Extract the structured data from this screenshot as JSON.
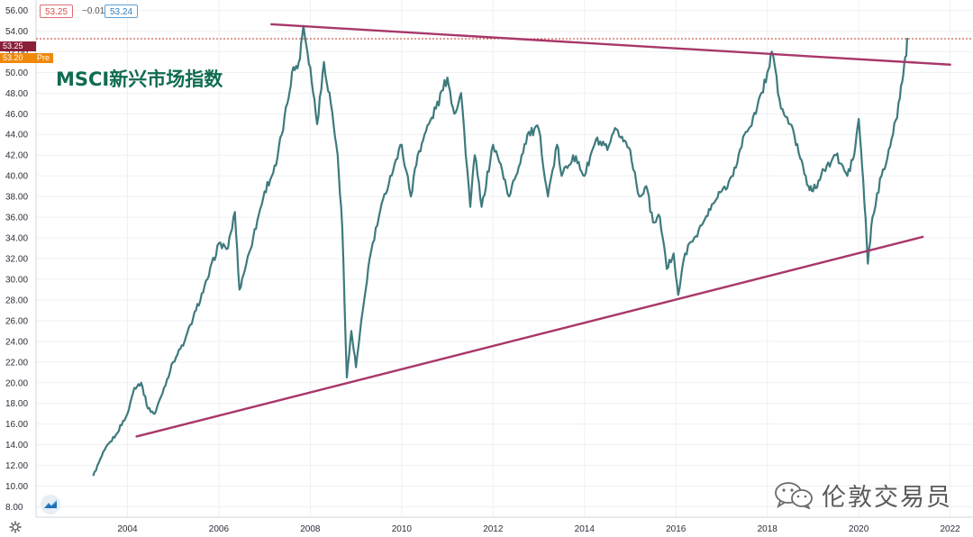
{
  "quote": {
    "bid": "53.25",
    "change": "−0.01",
    "ask": "53.24",
    "last_price": "53.25",
    "pre_price": "53.20",
    "pre_label": "Pre"
  },
  "watermark": "伦敦交易员",
  "colors": {
    "price_line": "#3e7a7e",
    "trendline": "#a8376a",
    "last_price_marker": "#8a1f3a",
    "pre_marker": "#f0880a",
    "title": "#0f6b52"
  },
  "icons": [
    "settings-icon",
    "tradingview-logo-icon",
    "wechat-icon"
  ],
  "chart_data": {
    "type": "line",
    "title": "MSCI新兴市场指数",
    "xlabel": "",
    "ylabel": "",
    "xlim": [
      2002.0,
      2022.5
    ],
    "ylim": [
      7.0,
      57.0
    ],
    "y_ticks": [
      8,
      10,
      12,
      14,
      16,
      18,
      20,
      22,
      24,
      26,
      28,
      30,
      32,
      34,
      36,
      38,
      40,
      42,
      44,
      46,
      48,
      50,
      52,
      54,
      56
    ],
    "y_tick_labels": [
      "8.00",
      "10.00",
      "12.00",
      "14.00",
      "16.00",
      "18.00",
      "20.00",
      "22.00",
      "24.00",
      "26.00",
      "28.00",
      "30.00",
      "32.00",
      "34.00",
      "36.00",
      "38.00",
      "40.00",
      "42.00",
      "44.00",
      "46.00",
      "48.00",
      "50.00",
      "52.00",
      "54.00",
      "56.00"
    ],
    "x_ticks": [
      2004,
      2006,
      2008,
      2010,
      2012,
      2014,
      2016,
      2018,
      2020,
      2022
    ],
    "x_tick_labels": [
      "2004",
      "2006",
      "2008",
      "2010",
      "2012",
      "2014",
      "2016",
      "2018",
      "2020",
      "2022"
    ],
    "grid": true,
    "series": [
      {
        "x": [
          2003.25,
          2003.5,
          2003.75,
          2004.0,
          2004.15,
          2004.3,
          2004.45,
          2004.6,
          2004.8,
          2005.0,
          2005.25,
          2005.5,
          2005.75,
          2006.0,
          2006.2,
          2006.35,
          2006.45,
          2006.6,
          2006.75,
          2007.0,
          2007.25,
          2007.5,
          2007.6,
          2007.75,
          2007.85,
          2008.0,
          2008.15,
          2008.3,
          2008.45,
          2008.6,
          2008.7,
          2008.8,
          2008.9,
          2009.0,
          2009.15,
          2009.3,
          2009.5,
          2009.75,
          2010.0,
          2010.2,
          2010.35,
          2010.5,
          2010.75,
          2011.0,
          2011.15,
          2011.3,
          2011.5,
          2011.6,
          2011.75,
          2012.0,
          2012.2,
          2012.35,
          2012.5,
          2012.75,
          2013.0,
          2013.2,
          2013.4,
          2013.5,
          2013.75,
          2014.0,
          2014.25,
          2014.5,
          2014.7,
          2015.0,
          2015.2,
          2015.35,
          2015.5,
          2015.65,
          2015.8,
          2015.95,
          2016.05,
          2016.2,
          2016.4,
          2016.6,
          2016.85,
          2017.0,
          2017.25,
          2017.5,
          2017.75,
          2018.0,
          2018.1,
          2018.3,
          2018.5,
          2018.75,
          2018.9,
          2019.0,
          2019.3,
          2019.5,
          2019.75,
          2019.9,
          2020.0,
          2020.1,
          2020.2,
          2020.3,
          2020.5,
          2020.75,
          2020.9,
          2021.0,
          2021.08
        ],
        "y": [
          11.0,
          13.5,
          15.0,
          17.0,
          19.5,
          20.0,
          17.5,
          17.0,
          19.5,
          22.0,
          24.0,
          27.0,
          30.0,
          33.5,
          33.0,
          36.5,
          29.0,
          31.5,
          34.0,
          38.5,
          41.0,
          47.0,
          50.0,
          51.0,
          54.5,
          50.5,
          45.0,
          51.0,
          47.0,
          42.0,
          35.0,
          20.5,
          25.0,
          21.5,
          27.0,
          32.0,
          36.0,
          40.0,
          43.0,
          38.0,
          42.0,
          44.0,
          46.5,
          49.5,
          46.0,
          48.0,
          37.0,
          42.0,
          37.0,
          43.0,
          40.5,
          38.0,
          40.0,
          44.0,
          44.5,
          38.0,
          43.0,
          40.0,
          42.0,
          40.0,
          43.5,
          42.5,
          44.5,
          42.5,
          38.0,
          39.0,
          35.5,
          36.0,
          31.0,
          32.5,
          28.5,
          32.5,
          34.0,
          35.5,
          37.5,
          38.5,
          40.0,
          44.0,
          46.0,
          50.0,
          52.0,
          46.5,
          45.0,
          41.5,
          39.0,
          38.5,
          41.0,
          42.0,
          40.0,
          42.0,
          45.5,
          39.5,
          31.5,
          36.0,
          40.0,
          44.0,
          47.5,
          51.0,
          53.25
        ]
      }
    ],
    "trendlines": [
      {
        "name": "resistance",
        "x": [
          2007.15,
          2022.0
        ],
        "y": [
          54.65,
          50.75
        ]
      },
      {
        "name": "support",
        "x": [
          2004.2,
          2021.4
        ],
        "y": [
          14.8,
          34.1
        ]
      }
    ],
    "last_price_line": 53.25
  }
}
